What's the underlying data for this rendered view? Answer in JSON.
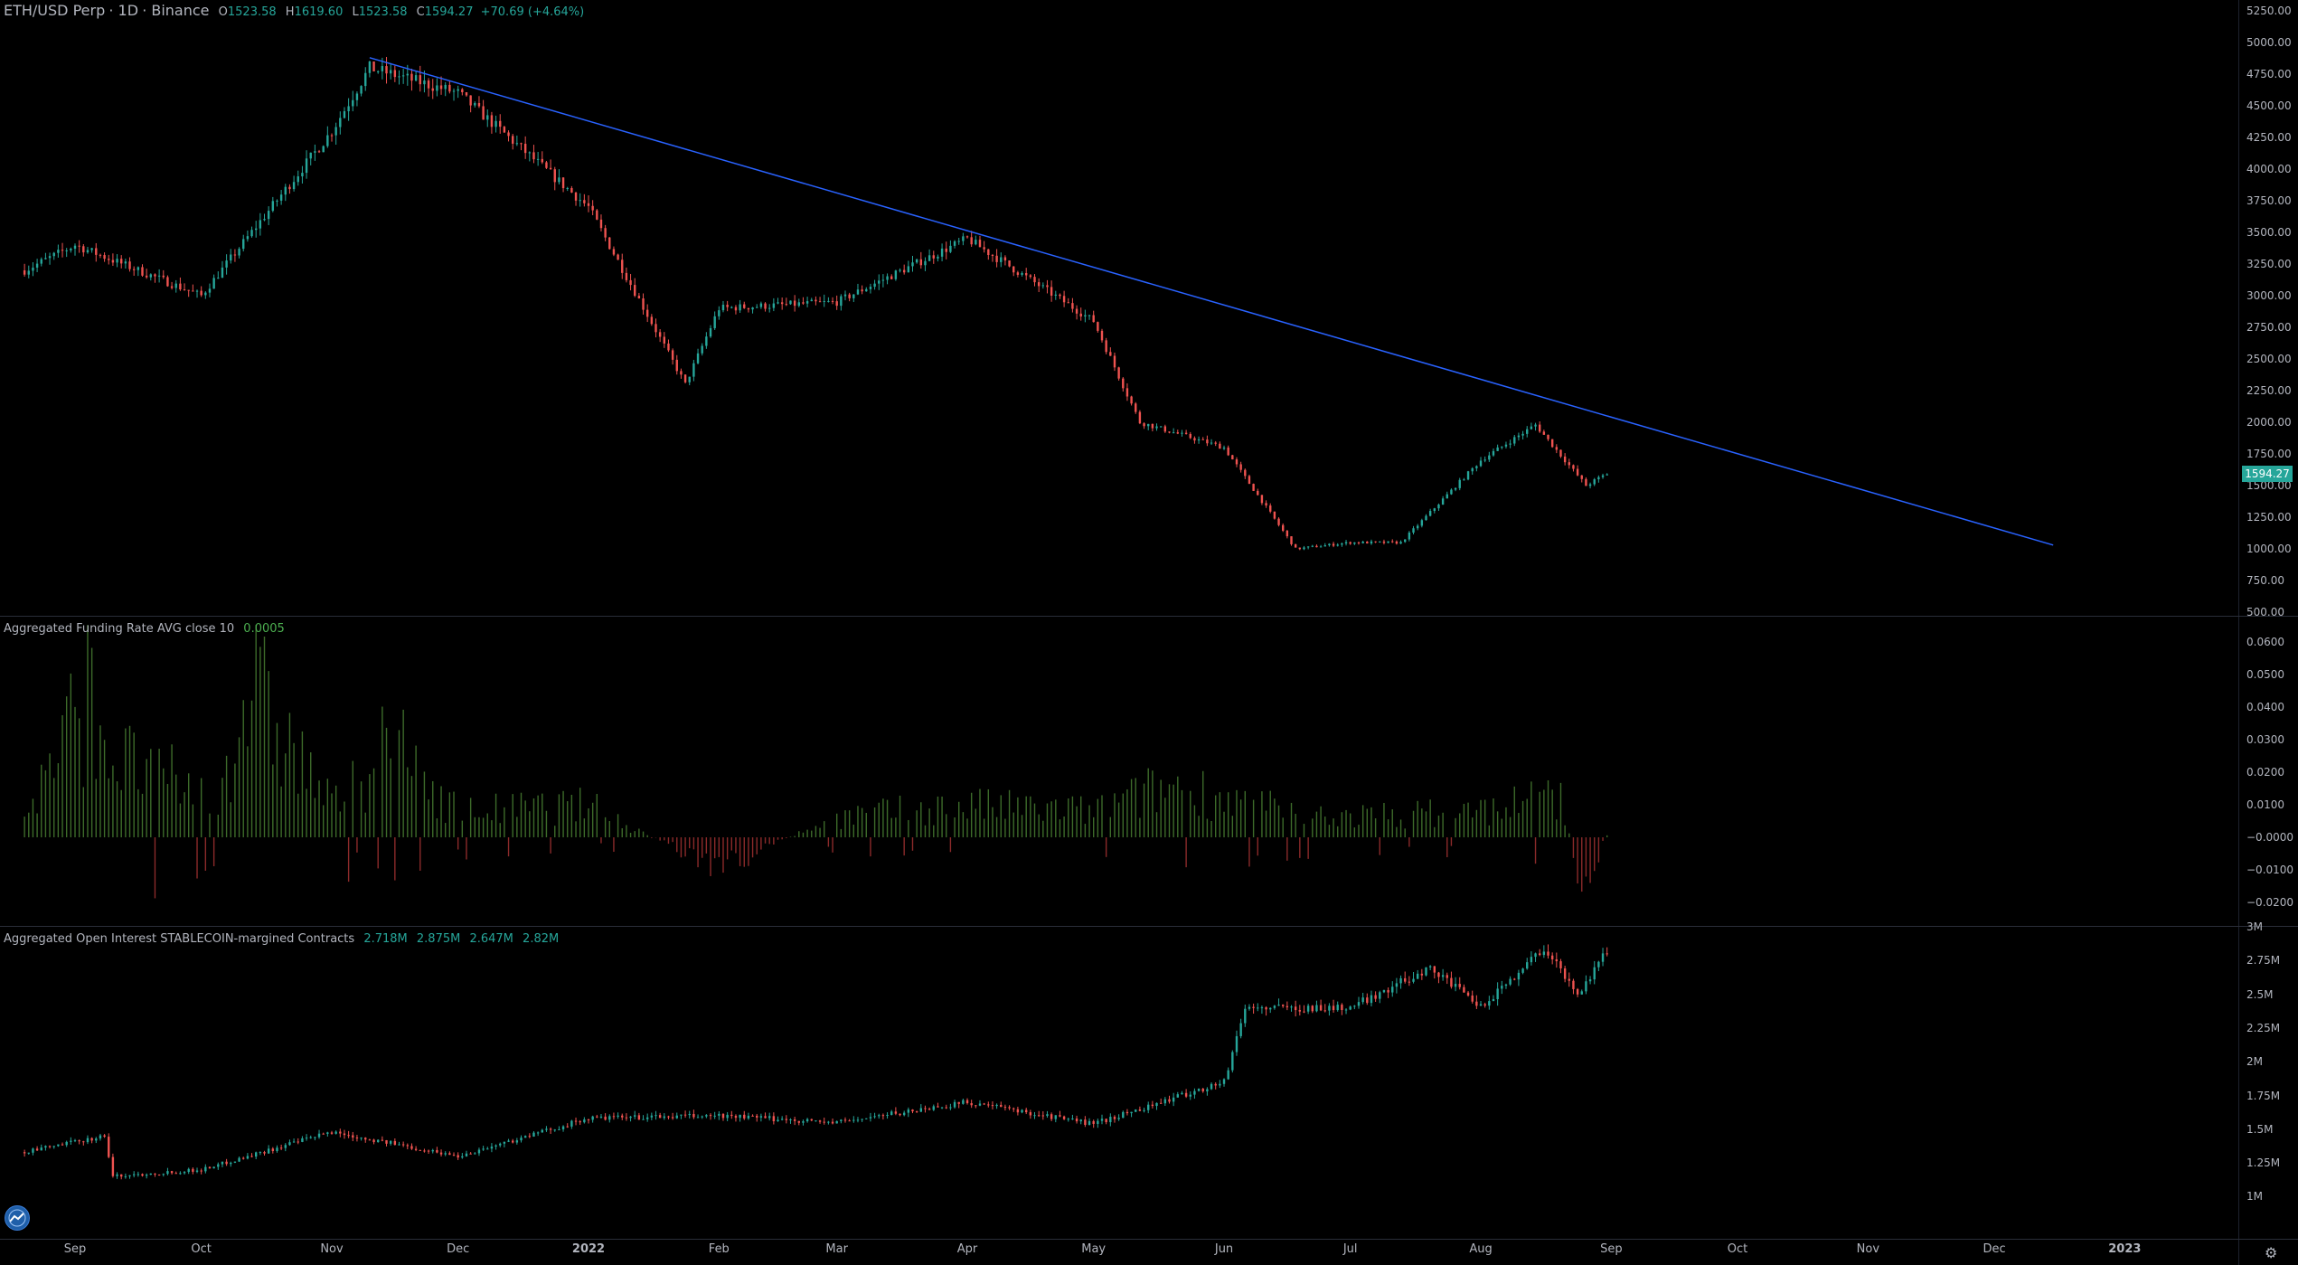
{
  "header": {
    "symbol": "ETH/USD Perp",
    "interval": "1D",
    "exchange": "Binance",
    "o_label": "O",
    "o_value": "1523.58",
    "h_label": "H",
    "h_value": "1619.60",
    "l_label": "L",
    "l_value": "1523.58",
    "c_label": "C",
    "c_value": "1594.27",
    "change": "+70.69 (+4.64%)"
  },
  "price_axis": [
    "5250.00",
    "5000.00",
    "4750.00",
    "4500.00",
    "4250.00",
    "4000.00",
    "3750.00",
    "3500.00",
    "3250.00",
    "3000.00",
    "2750.00",
    "2500.00",
    "2250.00",
    "2000.00",
    "1750.00",
    "1500.00",
    "1250.00",
    "1000.00",
    "750.00",
    "500.00"
  ],
  "last_price": "1594.27",
  "funding": {
    "title": "Aggregated Funding Rate AVG close 10",
    "value": "0.0005",
    "axis": [
      "0.0600",
      "0.0500",
      "0.0400",
      "0.0300",
      "0.0200",
      "0.0100",
      "−0.0000",
      "−0.0100",
      "−0.0200"
    ]
  },
  "open_interest": {
    "title": "Aggregated Open Interest STABLECOIN-margined Contracts",
    "values": [
      "2.718M",
      "2.875M",
      "2.647M",
      "2.82M"
    ],
    "axis": [
      "3M",
      "2.75M",
      "2.5M",
      "2.25M",
      "2M",
      "1.75M",
      "1.5M",
      "1.25M",
      "1M"
    ]
  },
  "time_axis": [
    "Sep",
    "Oct",
    "Nov",
    "Dec",
    "2022",
    "Feb",
    "Mar",
    "Apr",
    "May",
    "Jun",
    "Jul",
    "Aug",
    "Sep",
    "Oct",
    "Nov",
    "Dec",
    "2023"
  ],
  "colors": {
    "up": "#26a69a",
    "down": "#ef5350",
    "trendline": "#2962ff",
    "funding_pos": "#3d6b2a",
    "funding_neg": "#8b2a2a"
  },
  "icons": {
    "logo": "tradingview-logo-icon",
    "settings": "gear-icon"
  },
  "chart_data": [
    {
      "type": "candlestick",
      "ylim": [
        500,
        5250
      ],
      "x": [
        "2021-08-20",
        "2021-09-01",
        "2021-10-01",
        "2021-11-01",
        "2021-11-10",
        "2021-12-01",
        "2022-01-01",
        "2022-01-24",
        "2022-02-01",
        "2022-03-01",
        "2022-04-01",
        "2022-05-01",
        "2022-05-12",
        "2022-06-01",
        "2022-06-18",
        "2022-07-01",
        "2022-07-13",
        "2022-08-01",
        "2022-08-14",
        "2022-08-26",
        "2022-08-31"
      ],
      "close": [
        3200,
        3400,
        3000,
        4300,
        4800,
        4600,
        3700,
        2300,
        2900,
        2950,
        3450,
        2800,
        2000,
        1800,
        1000,
        1050,
        1050,
        1700,
        1980,
        1500,
        1594.27
      ],
      "trendline": {
        "from": {
          "x": "2021-11-10",
          "y": 4880
        },
        "to": {
          "x": "2022-12-15",
          "y": 1030
        }
      }
    },
    {
      "type": "bar",
      "title": "Aggregated Funding Rate AVG close 10",
      "ylim": [
        -0.022,
        0.062
      ],
      "x": [
        "2021-08-20",
        "2021-09-05",
        "2021-09-10",
        "2021-10-05",
        "2021-10-12",
        "2021-11-01",
        "2021-11-15",
        "2021-12-01",
        "2022-01-01",
        "2022-02-01",
        "2022-03-01",
        "2022-04-01",
        "2022-05-01",
        "2022-05-20",
        "2022-06-15",
        "2022-07-01",
        "2022-08-01",
        "2022-08-20",
        "2022-08-25",
        "2022-08-31"
      ],
      "values": [
        0.008,
        0.057,
        0.03,
        0.016,
        0.058,
        0.012,
        0.035,
        0.01,
        0.012,
        -0.012,
        0.008,
        0.012,
        0.01,
        0.02,
        0.01,
        0.008,
        0.01,
        0.017,
        -0.02,
        0.0005
      ]
    },
    {
      "type": "candlestick",
      "title": "Aggregated Open Interest STABLECOIN-margined Contracts",
      "ylim": [
        1000000,
        3050000
      ],
      "x": [
        "2021-08-20",
        "2021-09-08",
        "2021-09-10",
        "2021-10-01",
        "2021-11-01",
        "2021-12-01",
        "2022-01-01",
        "2022-02-01",
        "2022-03-01",
        "2022-04-01",
        "2022-05-01",
        "2022-06-01",
        "2022-06-06",
        "2022-07-01",
        "2022-07-20",
        "2022-08-01",
        "2022-08-16",
        "2022-08-24",
        "2022-08-31"
      ],
      "close": [
        1330000,
        1450000,
        1150000,
        1200000,
        1480000,
        1300000,
        1580000,
        1600000,
        1550000,
        1700000,
        1540000,
        1850000,
        2400000,
        2400000,
        2700000,
        2400000,
        2850000,
        2500000,
        2820000
      ]
    }
  ]
}
